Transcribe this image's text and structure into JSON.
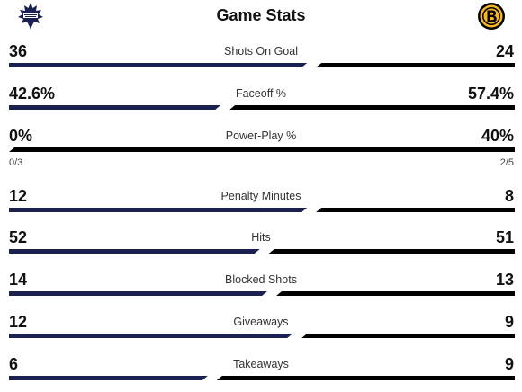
{
  "title": "Game Stats",
  "teams": {
    "home": {
      "logo_icon": "maple-leafs-logo-icon",
      "color": "#1a2150"
    },
    "away": {
      "logo_icon": "bruins-logo-icon",
      "color": "#000000"
    }
  },
  "stats": [
    {
      "label": "Shots On Goal",
      "home": "36",
      "away": "24",
      "home_share": 0.6
    },
    {
      "label": "Faceoff %",
      "home": "42.6%",
      "away": "57.4%",
      "home_share": 0.426
    },
    {
      "label": "Power-Play %",
      "home": "0%",
      "away": "40%",
      "home_share": 0.0,
      "home_sub": "0/3",
      "away_sub": "2/5"
    },
    {
      "label": "Penalty Minutes",
      "home": "12",
      "away": "8",
      "home_share": 0.6
    },
    {
      "label": "Hits",
      "home": "52",
      "away": "51",
      "home_share": 0.505
    },
    {
      "label": "Blocked Shots",
      "home": "14",
      "away": "13",
      "home_share": 0.52
    },
    {
      "label": "Giveaways",
      "home": "12",
      "away": "9",
      "home_share": 0.571
    },
    {
      "label": "Takeaways",
      "home": "6",
      "away": "9",
      "home_share": 0.4
    }
  ]
}
